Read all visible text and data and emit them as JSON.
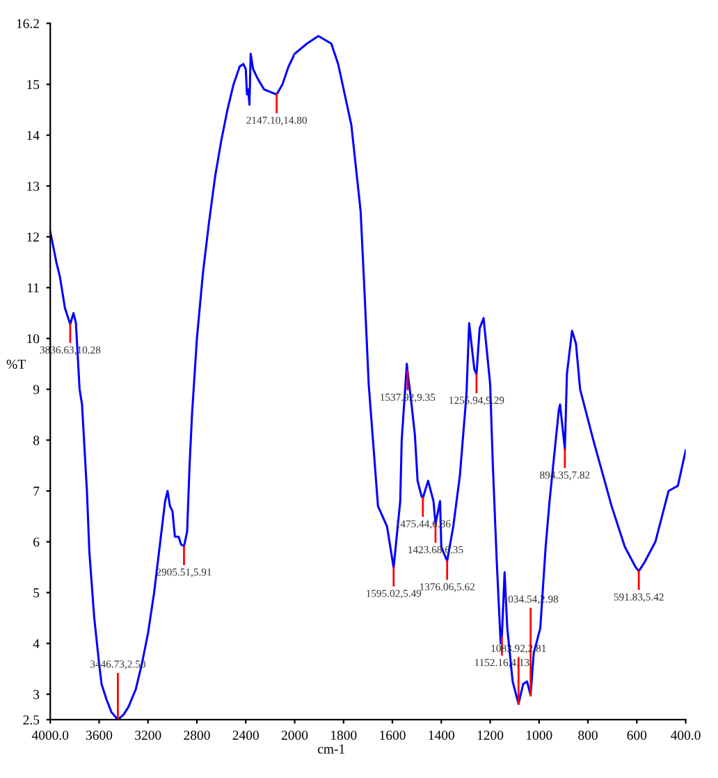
{
  "chart_data": [
    {
      "type": "line",
      "xlabel": "cm-1",
      "ylabel": "%T",
      "xlim": [
        4000,
        2000
      ],
      "ylim": [
        2.5,
        16.2
      ],
      "xticks": [
        {
          "value": 4000,
          "label": "4000.0"
        },
        3600,
        3200,
        2800,
        2400
      ],
      "yticks": [
        2.5,
        3,
        4,
        5,
        6,
        7,
        8,
        9,
        10,
        11,
        12,
        13,
        14,
        15,
        16.2
      ],
      "grid": false,
      "legend": false,
      "series": [
        {
          "color": "#0000ff",
          "x": [
            4000,
            3950,
            3920,
            3880,
            3836.63,
            3810,
            3790,
            3760,
            3740,
            3700,
            3680,
            3640,
            3600,
            3580,
            3540,
            3500,
            3446.73,
            3400,
            3360,
            3300,
            3250,
            3200,
            3150,
            3100,
            3060,
            3040,
            3020,
            3000,
            2980,
            2950,
            2930,
            2905.51,
            2880,
            2860,
            2840,
            2800,
            2750,
            2700,
            2650,
            2600,
            2550,
            2500,
            2450,
            2420,
            2400,
            2390,
            2380,
            2370,
            2360,
            2340,
            2300,
            2250,
            2200,
            2147.1,
            2100,
            2050,
            2000
          ],
          "values": [
            12.1,
            11.5,
            11.2,
            10.6,
            10.28,
            10.5,
            10.3,
            9.0,
            8.7,
            7.0,
            5.8,
            4.5,
            3.6,
            3.2,
            2.9,
            2.65,
            2.5,
            2.6,
            2.75,
            3.1,
            3.6,
            4.2,
            5.0,
            6.0,
            6.8,
            7.0,
            6.7,
            6.6,
            6.1,
            6.1,
            5.95,
            5.91,
            6.2,
            7.5,
            8.5,
            10.0,
            11.3,
            12.3,
            13.2,
            13.9,
            14.5,
            15.0,
            15.35,
            15.4,
            15.3,
            14.8,
            14.9,
            14.6,
            15.6,
            15.3,
            15.1,
            14.9,
            14.85,
            14.8,
            15.0,
            15.35,
            15.6
          ]
        }
      ],
      "annotations": [
        {
          "text": "3836.63,10.28",
          "x": 3836.63,
          "y": 10.28
        },
        {
          "text": "3446.73,2.50",
          "x": 3446.73,
          "y": 2.5
        },
        {
          "text": "2905.51,5.91",
          "x": 2905.51,
          "y": 5.91
        },
        {
          "text": "2147.10,14.80",
          "x": 2147.1,
          "y": 14.8
        }
      ]
    },
    {
      "type": "line",
      "xlim": [
        2000,
        400
      ],
      "ylim": [
        2.5,
        16.2
      ],
      "xticks": [
        2000,
        1800,
        1600,
        1400,
        1200,
        1000,
        800,
        600,
        {
          "value": 400,
          "label": "400.0"
        }
      ],
      "tick_labels": "x",
      "grid": false,
      "legend": false,
      "series": [
        {
          "color": "#0000ff",
          "x": [
            2000,
            1950,
            1903,
            1850,
            1822,
            1768,
            1730,
            1714,
            1697,
            1659,
            1622,
            1595.02,
            1568,
            1562,
            1541,
            1537.92,
            1524,
            1508,
            1497,
            1481,
            1475.44,
            1454,
            1432,
            1423.68,
            1405,
            1400,
            1376.06,
            1351,
            1324,
            1297,
            1286,
            1265,
            1255.94,
            1243,
            1227,
            1200,
            1189,
            1173,
            1157,
            1152.16,
            1141,
            1130,
            1108,
            1083.92,
            1065,
            1049,
            1034.54,
            1022,
            995,
            973,
            957,
            919,
            914,
            894.35,
            886,
            865,
            849,
            832,
            778,
            703,
            649,
            605,
            591.83,
            568,
            524,
            470,
            432,
            400
          ],
          "values": [
            15.6,
            15.8,
            15.95,
            15.8,
            15.4,
            14.2,
            12.5,
            10.9,
            9.1,
            6.7,
            6.3,
            5.49,
            6.8,
            8.0,
            9.5,
            9.35,
            8.8,
            8.1,
            7.2,
            6.9,
            6.86,
            7.2,
            6.8,
            6.35,
            6.8,
            5.9,
            5.62,
            6.3,
            7.3,
            8.9,
            10.3,
            9.4,
            9.29,
            10.2,
            10.4,
            9.1,
            7.5,
            5.6,
            4.0,
            4.13,
            5.4,
            4.3,
            3.25,
            2.81,
            3.2,
            3.25,
            2.98,
            3.8,
            4.3,
            5.9,
            6.8,
            8.6,
            8.7,
            7.82,
            9.3,
            10.15,
            9.9,
            9.0,
            8.0,
            6.7,
            5.9,
            5.5,
            5.42,
            5.6,
            6.0,
            7.0,
            7.1,
            7.8
          ]
        }
      ],
      "annotations": [
        {
          "text": "1595.02,5.49",
          "x": 1595.02,
          "y": 5.49
        },
        {
          "text": "1537.92,9.35",
          "x": 1537.92,
          "y": 9.35
        },
        {
          "text": "1475.44,6.86",
          "x": 1475.44,
          "y": 6.86
        },
        {
          "text": "1423.68,6.35",
          "x": 1423.68,
          "y": 6.35
        },
        {
          "text": "1376.06,5.62",
          "x": 1376.06,
          "y": 5.62
        },
        {
          "text": "1255.94,9.29",
          "x": 1255.94,
          "y": 9.29
        },
        {
          "text": "1152.16,4.13",
          "x": 1152.16,
          "y": 4.13
        },
        {
          "text": "1083.92,2.81",
          "x": 1083.92,
          "y": 2.81
        },
        {
          "text": "1034.54,2.98",
          "x": 1034.54,
          "y": 2.98
        },
        {
          "text": "894.35,7.82",
          "x": 894.35,
          "y": 7.82
        },
        {
          "text": "591.83,5.42",
          "x": 591.83,
          "y": 5.42
        }
      ]
    }
  ]
}
